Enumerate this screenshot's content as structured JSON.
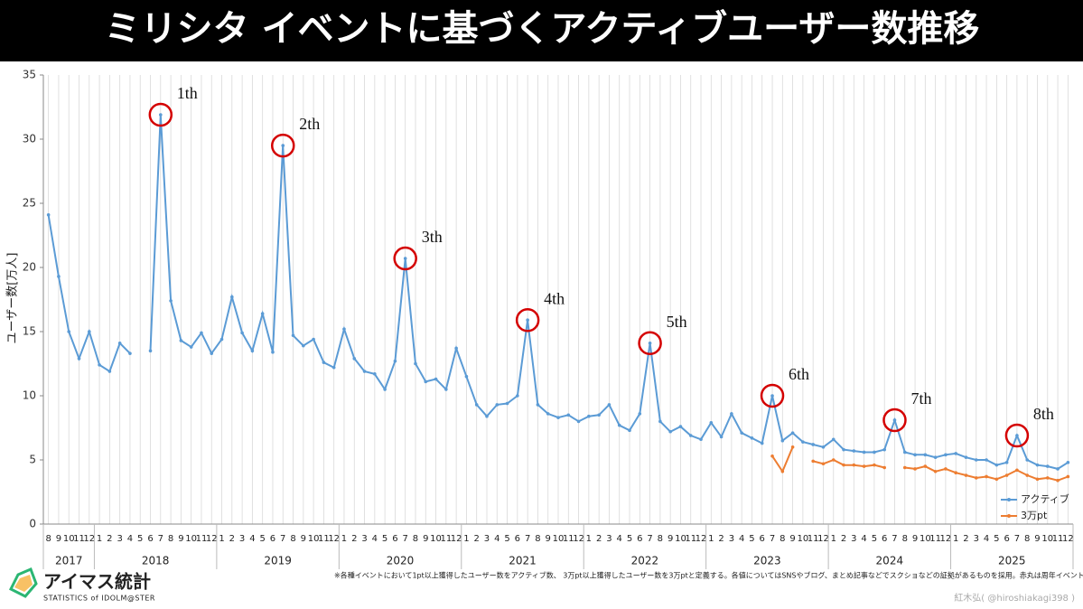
{
  "chart_data": {
    "type": "line",
    "title": "ミリシタ イベントに基づくアクティブユーザー数推移",
    "ylabel": "ユーザー数[万人]",
    "ylim": [
      0,
      35
    ],
    "yticks": [
      0,
      5,
      10,
      15,
      20,
      25,
      30,
      35
    ],
    "grid": "x",
    "legend": "lower right",
    "years": [
      "2017",
      "2018",
      "2019",
      "2020",
      "2021",
      "2022",
      "2023",
      "2024",
      "2025"
    ],
    "categories": [
      "8",
      "9",
      "10",
      "11",
      "12",
      "1",
      "2",
      "3",
      "4",
      "5",
      "6",
      "7",
      "8",
      "9",
      "10",
      "11",
      "12",
      "1",
      "2",
      "3",
      "4",
      "5",
      "6",
      "7",
      "8",
      "9",
      "10",
      "11",
      "12",
      "1",
      "2",
      "3",
      "4",
      "5",
      "6",
      "7",
      "8",
      "9",
      "10",
      "11",
      "12",
      "1",
      "2",
      "3",
      "4",
      "5",
      "6",
      "7",
      "8",
      "9",
      "10",
      "11",
      "12",
      "1",
      "2",
      "3",
      "4",
      "5",
      "6",
      "7",
      "8",
      "9",
      "10",
      "11",
      "12",
      "1",
      "2",
      "3",
      "4",
      "5",
      "6",
      "7",
      "8",
      "9",
      "10",
      "11",
      "12",
      "1",
      "2",
      "3",
      "4",
      "5",
      "6",
      "7",
      "8",
      "9",
      "10",
      "11",
      "12",
      "1",
      "2",
      "3",
      "4",
      "5",
      "6",
      "7",
      "8",
      "9",
      "10",
      "11",
      "12"
    ],
    "series": [
      {
        "name": "アクティブ",
        "color": "#5b9bd5",
        "values": [
          24.1,
          19.3,
          15.0,
          12.9,
          15.0,
          12.4,
          11.9,
          14.1,
          13.3,
          null,
          13.5,
          31.9,
          17.4,
          14.3,
          13.8,
          14.9,
          13.3,
          14.4,
          17.7,
          14.9,
          13.5,
          16.4,
          13.4,
          29.5,
          14.7,
          13.9,
          14.4,
          12.6,
          12.2,
          15.2,
          12.9,
          11.9,
          11.7,
          10.5,
          12.7,
          20.7,
          12.5,
          11.1,
          11.3,
          10.5,
          13.7,
          11.5,
          9.3,
          8.4,
          9.3,
          9.4,
          10.0,
          15.9,
          9.3,
          8.6,
          8.3,
          8.5,
          8.0,
          8.4,
          8.5,
          9.3,
          7.7,
          7.3,
          8.6,
          14.1,
          8.0,
          7.2,
          7.6,
          6.9,
          6.6,
          7.9,
          6.8,
          8.6,
          7.1,
          6.7,
          6.3,
          10.0,
          6.5,
          7.1,
          6.4,
          6.2,
          6.0,
          6.6,
          5.8,
          5.7,
          5.6,
          5.6,
          5.8,
          8.1,
          5.6,
          5.4,
          5.4,
          5.2,
          5.4,
          5.5,
          5.2,
          5.0,
          5.0,
          4.6,
          4.8,
          6.9,
          5.0,
          4.6,
          4.5,
          4.3,
          4.8
        ]
      },
      {
        "name": "3万pt",
        "color": "#ed7d31",
        "values": [
          null,
          null,
          null,
          null,
          null,
          null,
          null,
          null,
          null,
          null,
          null,
          null,
          null,
          null,
          null,
          null,
          null,
          null,
          null,
          null,
          null,
          null,
          null,
          null,
          null,
          null,
          null,
          null,
          null,
          null,
          null,
          null,
          null,
          null,
          null,
          null,
          null,
          null,
          null,
          null,
          null,
          null,
          null,
          null,
          null,
          null,
          null,
          null,
          null,
          null,
          null,
          null,
          null,
          null,
          null,
          null,
          null,
          null,
          null,
          null,
          null,
          null,
          null,
          null,
          null,
          null,
          null,
          null,
          null,
          null,
          null,
          5.3,
          4.1,
          6.0,
          null,
          4.9,
          4.7,
          5.0,
          4.6,
          4.6,
          4.5,
          4.6,
          4.4,
          null,
          4.4,
          4.3,
          4.5,
          4.1,
          4.3,
          4.0,
          3.8,
          3.6,
          3.7,
          3.5,
          3.8,
          4.2,
          3.8,
          3.5,
          3.6,
          3.4,
          3.7
        ]
      }
    ],
    "annotations": [
      "1th",
      "2th",
      "3th",
      "4th",
      "5th",
      "6th",
      "7th",
      "8th"
    ],
    "footnote": "※各種イベントにおいて1pt以上獲得したユーザー数をアクティブ数、 3万pt以上獲得したユーザー数を3万ptと定義する。各値についてはSNSやブログ、まとめ記事などでスクショなどの証拠があるものを採用。赤丸は周年イベント。",
    "credit": "紅木弘( @hiroshiakagi398 )",
    "logo": {
      "title": "アイマス統計",
      "subtitle": "STATISTICS of IDOLM@STER"
    }
  }
}
